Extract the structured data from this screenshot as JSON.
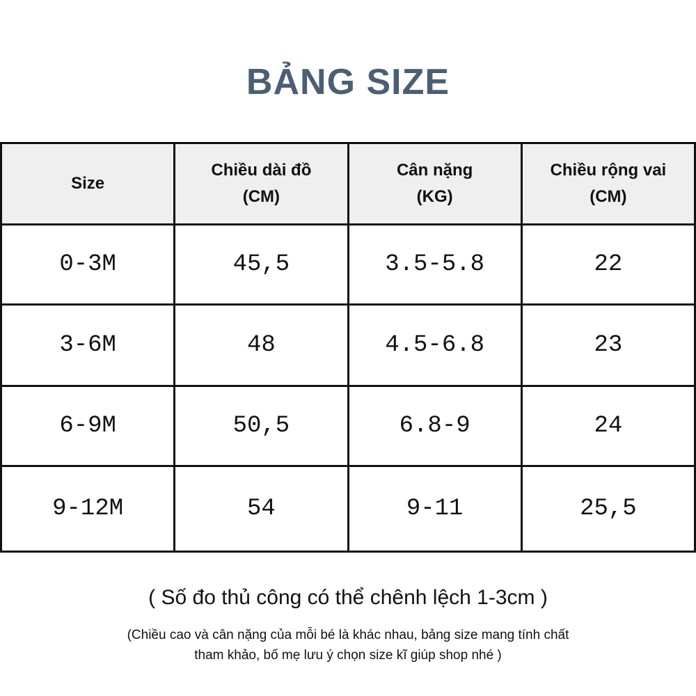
{
  "header": {
    "title": "BẢNG SIZE"
  },
  "table": {
    "columns": [
      [
        "Size"
      ],
      [
        "Chiều dài đồ",
        "(CM)"
      ],
      [
        "Cân nặng",
        "(KG)"
      ],
      [
        "Chiều rộng vai",
        "(CM)"
      ]
    ],
    "rows": [
      [
        "0-3M",
        "45,5",
        "3.5-5.8",
        "22"
      ],
      [
        "3-6M",
        "48",
        "4.5-6.8",
        "23"
      ],
      [
        "6-9M",
        "50,5",
        "6.8-9",
        "24"
      ],
      [
        "9-12M",
        "54",
        "9-11",
        "25,5"
      ]
    ]
  },
  "notes": {
    "main": "( Số đo thủ công có thể chênh lệch 1-3cm )",
    "detail": [
      "(Chiều cao và cân nặng của mỗi bé là khác nhau, bảng size mang tính chất",
      "tham khảo, bố mẹ lưu ý chọn size kĩ giúp shop nhé )"
    ]
  }
}
